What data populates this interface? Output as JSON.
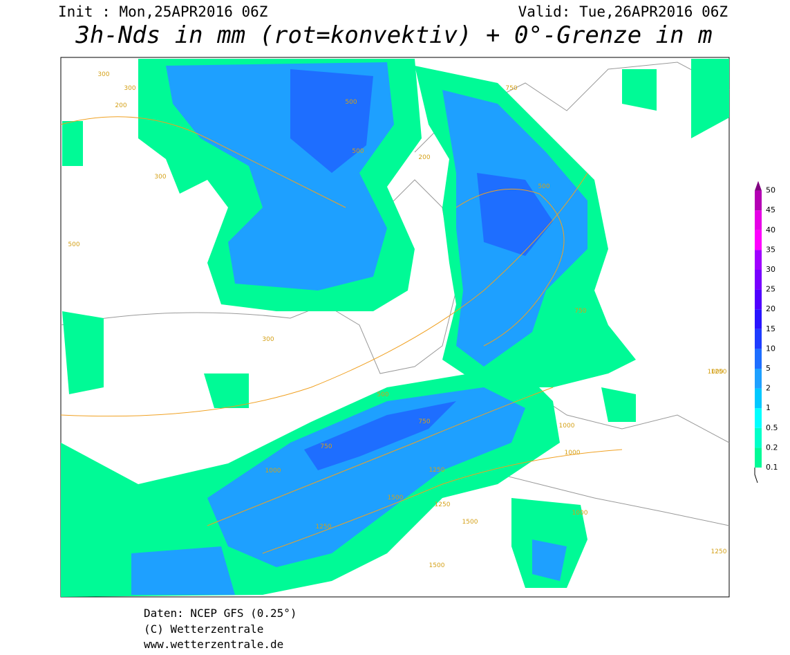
{
  "header": {
    "init": "Init : Mon,25APR2016 06Z",
    "valid": "Valid: Tue,26APR2016 06Z",
    "title": "3h-Nds in mm (rot=konvektiv) + 0°-Grenze in m"
  },
  "legend": {
    "values": [
      0.1,
      0.2,
      0.5,
      1,
      2,
      5,
      10,
      15,
      20,
      25,
      30,
      35,
      40,
      45,
      50
    ],
    "colors": [
      "#00fa96",
      "#00ffc8",
      "#00ffff",
      "#00c8ff",
      "#1ea0ff",
      "#1e6eff",
      "#1e3cff",
      "#2814ff",
      "#5000ff",
      "#7800ff",
      "#a000ff",
      "#ff00ff",
      "#e600e6",
      "#b400b4",
      "#820082"
    ]
  },
  "contour_labels": [
    300,
    300,
    200,
    500,
    200,
    300,
    500,
    500,
    750,
    300,
    500,
    1000,
    750,
    1000,
    1250,
    1000,
    750,
    1000,
    500,
    750,
    1250,
    1500,
    1250,
    1500,
    1250,
    1000,
    1500,
    1250
  ],
  "footer": {
    "source": "Daten: NCEP GFS (0.25°)",
    "copyright": "(C) Wetterzentrale",
    "url": "www.wetterzentrale.de"
  }
}
